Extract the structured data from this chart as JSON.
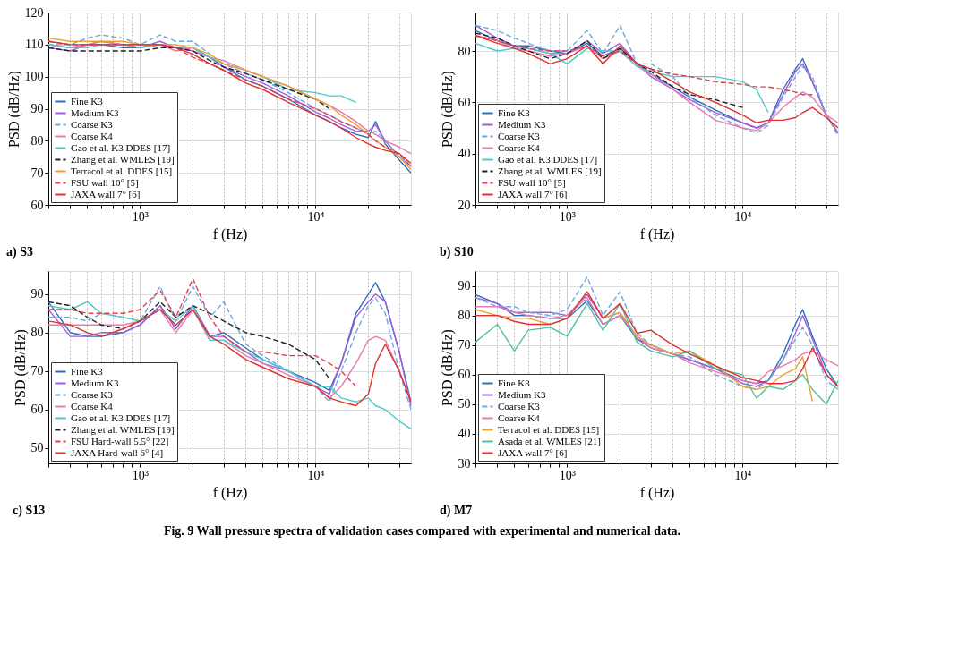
{
  "chart_data": [
    {
      "type": "line",
      "title": "a) S3",
      "xlabel": "f (Hz)",
      "ylabel": "PSD (dB/Hz)",
      "log": "x",
      "grid": true,
      "legend": "bottom left",
      "xlim": [
        300,
        35000
      ],
      "ylim": [
        60,
        120
      ],
      "yticks": [
        60,
        70,
        80,
        90,
        100,
        110,
        120
      ],
      "xticks": [
        {
          "value": 300,
          "label": null
        },
        {
          "value": 400,
          "label": null
        },
        {
          "value": 500,
          "label": null
        },
        {
          "value": 600,
          "label": null
        },
        {
          "value": 700,
          "label": null
        },
        {
          "value": 800,
          "label": null
        },
        {
          "value": 900,
          "label": null
        },
        {
          "value": 1000,
          "label": "10³"
        },
        {
          "value": 2000,
          "label": null
        },
        {
          "value": 3000,
          "label": null
        },
        {
          "value": 4000,
          "label": null
        },
        {
          "value": 5000,
          "label": null
        },
        {
          "value": 6000,
          "label": null
        },
        {
          "value": 7000,
          "label": null
        },
        {
          "value": 8000,
          "label": null
        },
        {
          "value": 9000,
          "label": null
        },
        {
          "value": 10000,
          "label": "10⁴"
        },
        {
          "value": 20000,
          "label": null
        },
        {
          "value": 30000,
          "label": null
        }
      ],
      "x": [
        300,
        400,
        500,
        600,
        800,
        1000,
        1300,
        1600,
        2000,
        2500,
        3000,
        4000,
        5000,
        7000,
        10000,
        12000,
        14000,
        17000,
        20000,
        22000,
        25000,
        30000,
        35000
      ],
      "series": [
        {
          "name": "Fine K3",
          "color": "#2e6fb8",
          "line_style": "solid",
          "values": [
            110,
            109,
            110,
            110,
            109,
            109,
            110,
            109,
            109,
            106,
            103,
            99,
            97,
            93,
            88,
            86,
            84,
            82,
            81,
            86,
            79,
            74,
            70
          ]
        },
        {
          "name": "Medium K3",
          "color": "#a05ee0",
          "line_style": "solid",
          "values": [
            109,
            108,
            110,
            111,
            110,
            109,
            111,
            109,
            108,
            106,
            103,
            100,
            98,
            94,
            89,
            87,
            85,
            83,
            83,
            85,
            80,
            75,
            72
          ]
        },
        {
          "name": "Coarse K3",
          "color": "#6fa8dc",
          "line_style": "dashed",
          "values": [
            110,
            110,
            112,
            113,
            112,
            110,
            113,
            111,
            111,
            107,
            104,
            101,
            99,
            95,
            90,
            88,
            86,
            84,
            82,
            83,
            80,
            75,
            72
          ]
        },
        {
          "name": "Coarse K4",
          "color": "#e87ab0",
          "line_style": "solid",
          "values": [
            110,
            109,
            110,
            111,
            110,
            110,
            110,
            108,
            109,
            106,
            105,
            102,
            100,
            97,
            93,
            91,
            89,
            86,
            83,
            82,
            80,
            78,
            76
          ]
        },
        {
          "name": "Gao et al. K3 DDES [17]",
          "color": "#4dc9cc",
          "line_style": "solid",
          "values": [
            110,
            109,
            109,
            110,
            110,
            109,
            110,
            109,
            109,
            106,
            104,
            102,
            100,
            96,
            95,
            94,
            94,
            92,
            null,
            null,
            null,
            null,
            null
          ]
        },
        {
          "name": "Zhang et al. WMLES [19]",
          "color": "#222222",
          "line_style": "dashed",
          "values": [
            109,
            108,
            108,
            108,
            108,
            108,
            109,
            109,
            108,
            105,
            103,
            101,
            99,
            96,
            93,
            90,
            null,
            null,
            null,
            null,
            null,
            null,
            null
          ]
        },
        {
          "name": "Terracol et al. DDES [15]",
          "color": "#f0a030",
          "line_style": "solid",
          "values": [
            112,
            111,
            111,
            111,
            111,
            110,
            110,
            110,
            109,
            107,
            104,
            102,
            100,
            97,
            93,
            91,
            88,
            85,
            82,
            80,
            78,
            75,
            71
          ]
        },
        {
          "name": "FSU wall 10° [5]",
          "color": "#e04050",
          "line_style": "dashed",
          "values": [
            111,
            110,
            110,
            110,
            110,
            110,
            110,
            109,
            106,
            104,
            102,
            99,
            97,
            93,
            90,
            88,
            86,
            84,
            82,
            80,
            78,
            76,
            72
          ]
        },
        {
          "name": "JAXA wall 7° [6]",
          "color": "#e03030",
          "line_style": "solid",
          "values": [
            111,
            110,
            110,
            110,
            110,
            110,
            110,
            109,
            107,
            104,
            102,
            98,
            96,
            92,
            88,
            86,
            84,
            81,
            79,
            78,
            77,
            76,
            73
          ]
        }
      ]
    },
    {
      "type": "line",
      "title": "b) S10",
      "xlabel": "f (Hz)",
      "ylabel": "PSD (dB/Hz)",
      "log": "x",
      "grid": true,
      "legend": "bottom left",
      "xlim": [
        300,
        35000
      ],
      "ylim": [
        20,
        95
      ],
      "yticks": [
        20,
        40,
        60,
        80
      ],
      "xticks": [
        {
          "value": 300,
          "label": null
        },
        {
          "value": 400,
          "label": null
        },
        {
          "value": 500,
          "label": null
        },
        {
          "value": 600,
          "label": null
        },
        {
          "value": 700,
          "label": null
        },
        {
          "value": 800,
          "label": null
        },
        {
          "value": 900,
          "label": null
        },
        {
          "value": 1000,
          "label": "10³"
        },
        {
          "value": 2000,
          "label": null
        },
        {
          "value": 3000,
          "label": null
        },
        {
          "value": 4000,
          "label": null
        },
        {
          "value": 5000,
          "label": null
        },
        {
          "value": 6000,
          "label": null
        },
        {
          "value": 7000,
          "label": null
        },
        {
          "value": 8000,
          "label": null
        },
        {
          "value": 9000,
          "label": null
        },
        {
          "value": 10000,
          "label": "10⁴"
        },
        {
          "value": 20000,
          "label": null
        },
        {
          "value": 30000,
          "label": null
        }
      ],
      "x": [
        300,
        400,
        500,
        600,
        800,
        1000,
        1300,
        1600,
        2000,
        2500,
        3000,
        4000,
        5000,
        7000,
        10000,
        12000,
        14000,
        17000,
        20000,
        22000,
        25000,
        30000,
        35000
      ],
      "series": [
        {
          "name": "Fine K3",
          "color": "#2e6fb8",
          "line_style": "solid",
          "values": [
            88,
            84,
            82,
            82,
            80,
            79,
            83,
            78,
            81,
            75,
            71,
            66,
            62,
            57,
            52,
            50,
            52,
            65,
            73,
            77,
            68,
            55,
            48
          ]
        },
        {
          "name": "Medium K3",
          "color": "#a05ee0",
          "line_style": "solid",
          "values": [
            90,
            85,
            82,
            81,
            79,
            79,
            84,
            79,
            83,
            75,
            70,
            65,
            61,
            56,
            52,
            50,
            52,
            63,
            72,
            75,
            68,
            55,
            48
          ]
        },
        {
          "name": "Coarse K3",
          "color": "#6fa8dc",
          "line_style": "dashed",
          "values": [
            90,
            88,
            85,
            83,
            80,
            80,
            88,
            79,
            90,
            75,
            75,
            70,
            62,
            55,
            50,
            48,
            51,
            62,
            70,
            74,
            70,
            55,
            47
          ]
        },
        {
          "name": "Coarse K4",
          "color": "#e87ab0",
          "line_style": "solid",
          "values": [
            86,
            84,
            81,
            80,
            78,
            79,
            82,
            77,
            80,
            74,
            71,
            65,
            60,
            53,
            50,
            49,
            52,
            58,
            62,
            64,
            62,
            55,
            52
          ]
        },
        {
          "name": "Gao et al. K3 DDES [17]",
          "color": "#4dc9cc",
          "line_style": "solid",
          "values": [
            83,
            80,
            81,
            81,
            79,
            75,
            81,
            80,
            80,
            74,
            72,
            70,
            70,
            70,
            68,
            65,
            56,
            null,
            null,
            null,
            null,
            null,
            null
          ]
        },
        {
          "name": "Zhang et al. WMLES [19]",
          "color": "#222222",
          "line_style": "dashed",
          "values": [
            87,
            85,
            82,
            80,
            77,
            79,
            84,
            77,
            81,
            75,
            72,
            66,
            63,
            61,
            58,
            null,
            null,
            null,
            null,
            null,
            null,
            null,
            null
          ]
        },
        {
          "name": "FSU wall 10° [5]",
          "color": "#e04050",
          "line_style": "dashed",
          "values": [
            86,
            84,
            82,
            81,
            80,
            80,
            82,
            78,
            80,
            75,
            73,
            71,
            70,
            68,
            67,
            66,
            66,
            65,
            64,
            63,
            63,
            null,
            null
          ]
        },
        {
          "name": "JAXA wall 7° [6]",
          "color": "#e03030",
          "line_style": "solid",
          "values": [
            86,
            83,
            81,
            79,
            75,
            77,
            82,
            75,
            82,
            75,
            73,
            68,
            64,
            60,
            55,
            52,
            53,
            53,
            54,
            56,
            58,
            54,
            50
          ]
        }
      ]
    },
    {
      "type": "line",
      "title": "c) S13",
      "xlabel": "f (Hz)",
      "ylabel": "PSD (dB/Hz)",
      "log": "x",
      "grid": true,
      "legend": "bottom left",
      "xlim": [
        300,
        35000
      ],
      "ylim": [
        46,
        96
      ],
      "yticks": [
        50,
        60,
        70,
        80,
        90
      ],
      "xticks": [
        {
          "value": 300,
          "label": null
        },
        {
          "value": 400,
          "label": null
        },
        {
          "value": 500,
          "label": null
        },
        {
          "value": 600,
          "label": null
        },
        {
          "value": 700,
          "label": null
        },
        {
          "value": 800,
          "label": null
        },
        {
          "value": 900,
          "label": null
        },
        {
          "value": 1000,
          "label": "10³"
        },
        {
          "value": 2000,
          "label": null
        },
        {
          "value": 3000,
          "label": null
        },
        {
          "value": 4000,
          "label": null
        },
        {
          "value": 5000,
          "label": null
        },
        {
          "value": 6000,
          "label": null
        },
        {
          "value": 7000,
          "label": null
        },
        {
          "value": 8000,
          "label": null
        },
        {
          "value": 9000,
          "label": null
        },
        {
          "value": 10000,
          "label": "10⁴"
        },
        {
          "value": 20000,
          "label": null
        },
        {
          "value": 30000,
          "label": null
        }
      ],
      "x": [
        300,
        400,
        500,
        600,
        800,
        1000,
        1300,
        1600,
        2000,
        2500,
        3000,
        4000,
        5000,
        7000,
        10000,
        12000,
        14000,
        17000,
        20000,
        22000,
        25000,
        30000,
        35000
      ],
      "series": [
        {
          "name": "Fine K3",
          "color": "#2e6fb8",
          "line_style": "solid",
          "values": [
            88,
            80,
            79,
            79,
            80,
            82,
            87,
            81,
            87,
            79,
            80,
            76,
            73,
            70,
            67,
            65,
            72,
            85,
            90,
            93,
            88,
            75,
            62
          ]
        },
        {
          "name": "Medium K3",
          "color": "#a05ee0",
          "line_style": "solid",
          "values": [
            86,
            79,
            79,
            80,
            80,
            82,
            87,
            81,
            87,
            79,
            79,
            75,
            72,
            70,
            66,
            64,
            72,
            84,
            88,
            90,
            88,
            75,
            61
          ]
        },
        {
          "name": "Coarse K3",
          "color": "#6fa8dc",
          "line_style": "dashed",
          "values": [
            84,
            84,
            83,
            85,
            84,
            83,
            92,
            83,
            92,
            84,
            88,
            77,
            74,
            70,
            66,
            62,
            70,
            80,
            87,
            89,
            85,
            70,
            60
          ]
        },
        {
          "name": "Coarse K4",
          "color": "#e87ab0",
          "line_style": "solid",
          "values": [
            82,
            82,
            82,
            82,
            82,
            83,
            86,
            80,
            86,
            78,
            78,
            74,
            72,
            69,
            66,
            63,
            66,
            72,
            78,
            79,
            78,
            70,
            62
          ]
        },
        {
          "name": "Gao et al. K3 DDES [17]",
          "color": "#4dc9cc",
          "line_style": "solid",
          "values": [
            87,
            86,
            88,
            85,
            84,
            83,
            86,
            83,
            87,
            78,
            78,
            75,
            73,
            70,
            66,
            66,
            63,
            62,
            63,
            61,
            60,
            57,
            55
          ]
        },
        {
          "name": "Zhang et al. WMLES [19]",
          "color": "#222222",
          "line_style": "dashed",
          "values": [
            88,
            87,
            84,
            82,
            81,
            83,
            88,
            84,
            87,
            85,
            83,
            80,
            79,
            77,
            73,
            68,
            null,
            null,
            null,
            null,
            null,
            null,
            null
          ]
        },
        {
          "name": "FSU Hard-wall 5.5° [22]",
          "color": "#e04050",
          "line_style": "dashed",
          "values": [
            86,
            86,
            85,
            85,
            85,
            86,
            91,
            84,
            94,
            84,
            79,
            75,
            75,
            74,
            74,
            72,
            70,
            66,
            null,
            null,
            null,
            null,
            null
          ]
        },
        {
          "name": "JAXA Hard-wall 6° [4]",
          "color": "#e03030",
          "line_style": "solid",
          "values": [
            83,
            82,
            80,
            79,
            81,
            83,
            86,
            82,
            86,
            79,
            77,
            73,
            71,
            68,
            66,
            63,
            62,
            61,
            64,
            72,
            77,
            70,
            62
          ]
        }
      ]
    },
    {
      "type": "line",
      "title": "d) M7",
      "xlabel": "f (Hz)",
      "ylabel": "PSD (dB/Hz)",
      "log": "x",
      "grid": true,
      "legend": "bottom left",
      "xlim": [
        300,
        35000
      ],
      "ylim": [
        30,
        95
      ],
      "yticks": [
        30,
        40,
        50,
        60,
        70,
        80,
        90
      ],
      "xticks": [
        {
          "value": 300,
          "label": null
        },
        {
          "value": 400,
          "label": null
        },
        {
          "value": 500,
          "label": null
        },
        {
          "value": 600,
          "label": null
        },
        {
          "value": 700,
          "label": null
        },
        {
          "value": 800,
          "label": null
        },
        {
          "value": 900,
          "label": null
        },
        {
          "value": 1000,
          "label": "10³"
        },
        {
          "value": 2000,
          "label": null
        },
        {
          "value": 3000,
          "label": null
        },
        {
          "value": 4000,
          "label": null
        },
        {
          "value": 5000,
          "label": null
        },
        {
          "value": 6000,
          "label": null
        },
        {
          "value": 7000,
          "label": null
        },
        {
          "value": 8000,
          "label": null
        },
        {
          "value": 9000,
          "label": null
        },
        {
          "value": 10000,
          "label": "10⁴"
        },
        {
          "value": 20000,
          "label": null
        },
        {
          "value": 30000,
          "label": null
        }
      ],
      "x": [
        300,
        400,
        500,
        600,
        800,
        1000,
        1300,
        1600,
        2000,
        2500,
        3000,
        4000,
        5000,
        7000,
        10000,
        12000,
        14000,
        17000,
        20000,
        22000,
        25000,
        30000,
        35000
      ],
      "annotations": [
        "Fig. 9    Wall pressure spectra of validation cases compared with experimental and numerical data."
      ],
      "series": [
        {
          "name": "Fine K3",
          "color": "#2e6fb8",
          "line_style": "solid",
          "values": [
            87,
            84,
            80,
            80,
            79,
            79,
            85,
            77,
            80,
            72,
            70,
            67,
            65,
            62,
            58,
            57,
            58,
            67,
            77,
            82,
            73,
            62,
            56
          ]
        },
        {
          "name": "Medium K3",
          "color": "#a05ee0",
          "line_style": "solid",
          "values": [
            86,
            84,
            81,
            81,
            81,
            80,
            87,
            79,
            81,
            72,
            69,
            67,
            65,
            62,
            57,
            56,
            58,
            65,
            74,
            80,
            72,
            60,
            56
          ]
        },
        {
          "name": "Coarse K3",
          "color": "#6fa8dc",
          "line_style": "dashed",
          "values": [
            86,
            83,
            83,
            81,
            80,
            82,
            93,
            80,
            88,
            74,
            70,
            67,
            66,
            60,
            56,
            55,
            58,
            65,
            72,
            76,
            70,
            58,
            55
          ]
        },
        {
          "name": "Coarse K4",
          "color": "#e87ab0",
          "line_style": "solid",
          "values": [
            83,
            83,
            81,
            80,
            79,
            80,
            86,
            77,
            80,
            73,
            69,
            67,
            64,
            61,
            58,
            57,
            61,
            63,
            65,
            67,
            68,
            65,
            63
          ]
        },
        {
          "name": "Terracol et al. DDES [15]",
          "color": "#f0a030",
          "line_style": "solid",
          "values": [
            82,
            80,
            79,
            79,
            77,
            79,
            88,
            79,
            81,
            73,
            70,
            67,
            68,
            63,
            56,
            55,
            56,
            60,
            62,
            66,
            51,
            null,
            null
          ]
        },
        {
          "name": "Asada et al. WMLES [21]",
          "color": "#50c0a0",
          "line_style": "solid",
          "values": [
            71,
            77,
            68,
            75,
            76,
            73,
            84,
            75,
            84,
            71,
            68,
            66,
            68,
            62,
            60,
            52,
            56,
            55,
            58,
            60,
            55,
            50,
            58
          ]
        },
        {
          "name": "JAXA wall 7° [6]",
          "color": "#e03030",
          "line_style": "solid",
          "values": [
            80,
            80,
            78,
            77,
            77,
            79,
            88,
            79,
            84,
            74,
            75,
            70,
            67,
            63,
            59,
            58,
            57,
            57,
            58,
            62,
            69,
            60,
            56
          ]
        }
      ]
    }
  ]
}
